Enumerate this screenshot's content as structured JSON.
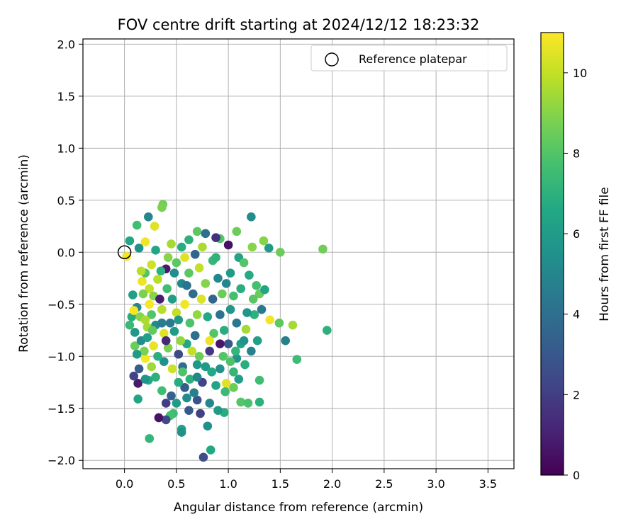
{
  "chart_data": {
    "type": "scatter",
    "title": "FOV centre drift starting at 2024/12/12 18:23:32",
    "xlabel": "Angular distance from reference (arcmin)",
    "ylabel": "Rotation from reference (arcmin)",
    "xlim": [
      -0.4,
      3.75
    ],
    "ylim": [
      -2.08,
      2.05
    ],
    "xticks": [
      "0.0",
      "0.5",
      "1.0",
      "1.5",
      "2.0",
      "2.5",
      "3.0",
      "3.5"
    ],
    "yticks": [
      "−2.0",
      "−1.5",
      "−1.0",
      "−0.5",
      "0.0",
      "0.5",
      "1.0",
      "1.5",
      "2.0"
    ],
    "grid": true,
    "legend": {
      "location": "upper-right",
      "entries": [
        "Reference platepar"
      ]
    },
    "reference_point": {
      "x": 0.0,
      "y": 0.0
    },
    "colorbar": {
      "label": "Hours from first FF file",
      "cmap": "viridis",
      "range": [
        0,
        11
      ],
      "ticks": [
        "0",
        "2",
        "4",
        "6",
        "8",
        "10"
      ]
    },
    "points": [
      {
        "x": 1.91,
        "y": 0.03,
        "c": 8.6
      },
      {
        "x": 1.95,
        "y": -0.75,
        "c": 7.0
      },
      {
        "x": 1.66,
        "y": -1.03,
        "c": 7.5
      },
      {
        "x": 1.62,
        "y": -0.7,
        "c": 9.5
      },
      {
        "x": 1.55,
        "y": -0.85,
        "c": 4.8
      },
      {
        "x": 1.5,
        "y": 0.0,
        "c": 8.5
      },
      {
        "x": 1.49,
        "y": -0.68,
        "c": 8.2
      },
      {
        "x": 1.4,
        "y": -0.65,
        "c": 10.8
      },
      {
        "x": 1.39,
        "y": 0.04,
        "c": 6.0
      },
      {
        "x": 1.34,
        "y": 0.11,
        "c": 9.0
      },
      {
        "x": 1.3,
        "y": -1.44,
        "c": 7.0
      },
      {
        "x": 1.3,
        "y": -1.23,
        "c": 7.6
      },
      {
        "x": 1.22,
        "y": 0.34,
        "c": 5.3
      },
      {
        "x": 1.23,
        "y": 0.05,
        "c": 9.0
      },
      {
        "x": 1.08,
        "y": 0.2,
        "c": 8.5
      },
      {
        "x": 1.0,
        "y": 0.07,
        "c": 0.5
      },
      {
        "x": 0.92,
        "y": 0.13,
        "c": 8.0
      },
      {
        "x": 0.7,
        "y": 0.2,
        "c": 8.2
      },
      {
        "x": 0.78,
        "y": 0.18,
        "c": 4.0
      },
      {
        "x": 0.88,
        "y": 0.14,
        "c": 1.5
      },
      {
        "x": 0.62,
        "y": 0.12,
        "c": 7.0
      },
      {
        "x": 0.37,
        "y": 0.46,
        "c": 8.6
      },
      {
        "x": 0.36,
        "y": 0.43,
        "c": 8.8
      },
      {
        "x": 0.23,
        "y": 0.34,
        "c": 5.0
      },
      {
        "x": 0.29,
        "y": 0.25,
        "c": 10.5
      },
      {
        "x": 0.12,
        "y": 0.26,
        "c": 7.6
      },
      {
        "x": 0.05,
        "y": 0.11,
        "c": 6.5
      },
      {
        "x": 0.14,
        "y": 0.04,
        "c": 5.5
      },
      {
        "x": 0.2,
        "y": 0.1,
        "c": 10.8
      },
      {
        "x": 0.02,
        "y": -0.04,
        "c": 10.8
      },
      {
        "x": 0.45,
        "y": 0.08,
        "c": 9.5
      },
      {
        "x": 0.55,
        "y": 0.05,
        "c": 6.8
      },
      {
        "x": 0.68,
        "y": -0.02,
        "c": 3.5
      },
      {
        "x": 0.72,
        "y": -0.15,
        "c": 10.0
      },
      {
        "x": 0.4,
        "y": -0.16,
        "c": 0.8
      },
      {
        "x": 0.5,
        "y": -0.1,
        "c": 8.2
      },
      {
        "x": 0.85,
        "y": -0.08,
        "c": 7.3
      },
      {
        "x": 1.1,
        "y": -0.05,
        "c": 6.3
      },
      {
        "x": 1.15,
        "y": -0.1,
        "c": 8.0
      },
      {
        "x": 1.2,
        "y": -0.22,
        "c": 6.7
      },
      {
        "x": 0.98,
        "y": -0.3,
        "c": 5.0
      },
      {
        "x": 1.27,
        "y": -0.32,
        "c": 7.7
      },
      {
        "x": 1.3,
        "y": -0.4,
        "c": 8.5
      },
      {
        "x": 1.35,
        "y": -0.36,
        "c": 6.4
      },
      {
        "x": 1.32,
        "y": -0.55,
        "c": 4.5
      },
      {
        "x": 1.25,
        "y": -0.6,
        "c": 7.0
      },
      {
        "x": 1.18,
        "y": -0.58,
        "c": 5.8
      },
      {
        "x": 1.17,
        "y": -0.74,
        "c": 9.5
      },
      {
        "x": 1.12,
        "y": -0.88,
        "c": 6.2
      },
      {
        "x": 1.22,
        "y": -0.95,
        "c": 4.8
      },
      {
        "x": 1.08,
        "y": -1.02,
        "c": 5.7
      },
      {
        "x": 1.16,
        "y": -1.08,
        "c": 6.8
      },
      {
        "x": 1.05,
        "y": -1.15,
        "c": 7.2
      },
      {
        "x": 1.1,
        "y": -1.22,
        "c": 6.1
      },
      {
        "x": 1.12,
        "y": -1.44,
        "c": 8.0
      },
      {
        "x": 1.19,
        "y": -1.45,
        "c": 7.8
      },
      {
        "x": 1.05,
        "y": -1.3,
        "c": 8.5
      },
      {
        "x": 0.98,
        "y": -1.26,
        "c": 10.5
      },
      {
        "x": 0.96,
        "y": -1.54,
        "c": 6.8
      },
      {
        "x": 0.9,
        "y": -1.52,
        "c": 6.0
      },
      {
        "x": 0.97,
        "y": -1.34,
        "c": 7.4
      },
      {
        "x": 0.82,
        "y": -1.45,
        "c": 5.0
      },
      {
        "x": 0.8,
        "y": -1.67,
        "c": 5.5
      },
      {
        "x": 0.83,
        "y": -1.9,
        "c": 6.6
      },
      {
        "x": 0.76,
        "y": -1.97,
        "c": 2.6
      },
      {
        "x": 0.73,
        "y": -1.55,
        "c": 2.1
      },
      {
        "x": 0.7,
        "y": -1.42,
        "c": 2.8
      },
      {
        "x": 0.62,
        "y": -1.52,
        "c": 3.0
      },
      {
        "x": 0.55,
        "y": -1.7,
        "c": 6.3
      },
      {
        "x": 0.55,
        "y": -1.73,
        "c": 5.5
      },
      {
        "x": 0.47,
        "y": -1.55,
        "c": 7.5
      },
      {
        "x": 0.44,
        "y": -1.57,
        "c": 7.7
      },
      {
        "x": 0.4,
        "y": -1.61,
        "c": 2.5
      },
      {
        "x": 0.33,
        "y": -1.59,
        "c": 0.6
      },
      {
        "x": 0.24,
        "y": -1.79,
        "c": 7.2
      },
      {
        "x": 0.4,
        "y": -1.45,
        "c": 2.0
      },
      {
        "x": 0.36,
        "y": -1.33,
        "c": 7.6
      },
      {
        "x": 0.3,
        "y": -1.2,
        "c": 7.0
      },
      {
        "x": 0.23,
        "y": -1.23,
        "c": 6.7
      },
      {
        "x": 0.13,
        "y": -1.26,
        "c": 0.8
      },
      {
        "x": 0.13,
        "y": -1.41,
        "c": 6.4
      },
      {
        "x": 0.09,
        "y": -1.19,
        "c": 2.2
      },
      {
        "x": 0.14,
        "y": -1.12,
        "c": 3.2
      },
      {
        "x": 0.2,
        "y": -1.02,
        "c": 10.9
      },
      {
        "x": 0.1,
        "y": -0.9,
        "c": 8.5
      },
      {
        "x": 0.16,
        "y": -0.85,
        "c": 5.3
      },
      {
        "x": 0.19,
        "y": -0.95,
        "c": 8.8
      },
      {
        "x": 0.1,
        "y": -0.77,
        "c": 5.8
      },
      {
        "x": 0.07,
        "y": -0.62,
        "c": 6.8
      },
      {
        "x": 0.12,
        "y": -0.53,
        "c": 5.0
      },
      {
        "x": 0.08,
        "y": -0.41,
        "c": 6.2
      },
      {
        "x": 0.09,
        "y": -0.56,
        "c": 10.9
      },
      {
        "x": 0.05,
        "y": -0.7,
        "c": 7.4
      },
      {
        "x": 0.17,
        "y": -0.28,
        "c": 10.7
      },
      {
        "x": 0.2,
        "y": -0.2,
        "c": 8.0
      },
      {
        "x": 0.24,
        "y": -0.35,
        "c": 10.0
      },
      {
        "x": 0.28,
        "y": -0.42,
        "c": 9.0
      },
      {
        "x": 0.32,
        "y": -0.26,
        "c": 9.8
      },
      {
        "x": 0.35,
        "y": -0.18,
        "c": 7.0
      },
      {
        "x": 0.26,
        "y": -0.6,
        "c": 8.0
      },
      {
        "x": 0.22,
        "y": -0.72,
        "c": 9.5
      },
      {
        "x": 0.3,
        "y": -0.7,
        "c": 5.2
      },
      {
        "x": 0.36,
        "y": -0.55,
        "c": 9.8
      },
      {
        "x": 0.41,
        "y": -0.35,
        "c": 7.6
      },
      {
        "x": 0.38,
        "y": -0.78,
        "c": 10.5
      },
      {
        "x": 0.44,
        "y": -0.68,
        "c": 4.5
      },
      {
        "x": 0.5,
        "y": -0.58,
        "c": 10.0
      },
      {
        "x": 0.48,
        "y": -0.76,
        "c": 6.0
      },
      {
        "x": 0.42,
        "y": -0.92,
        "c": 8.8
      },
      {
        "x": 0.38,
        "y": -1.05,
        "c": 5.5
      },
      {
        "x": 0.46,
        "y": -1.12,
        "c": 10.2
      },
      {
        "x": 0.52,
        "y": -0.98,
        "c": 2.5
      },
      {
        "x": 0.56,
        "y": -1.1,
        "c": 4.0
      },
      {
        "x": 0.6,
        "y": -0.88,
        "c": 6.5
      },
      {
        "x": 0.58,
        "y": -0.5,
        "c": 10.8
      },
      {
        "x": 0.55,
        "y": -0.3,
        "c": 5.0
      },
      {
        "x": 0.62,
        "y": -0.2,
        "c": 8.2
      },
      {
        "x": 0.66,
        "y": -0.4,
        "c": 3.8
      },
      {
        "x": 0.7,
        "y": -0.6,
        "c": 9.2
      },
      {
        "x": 0.68,
        "y": -0.8,
        "c": 4.0
      },
      {
        "x": 0.65,
        "y": -0.95,
        "c": 10.0
      },
      {
        "x": 0.7,
        "y": -1.08,
        "c": 5.8
      },
      {
        "x": 0.63,
        "y": -1.22,
        "c": 7.0
      },
      {
        "x": 0.58,
        "y": -1.3,
        "c": 3.2
      },
      {
        "x": 0.52,
        "y": -1.25,
        "c": 6.8
      },
      {
        "x": 0.67,
        "y": -1.35,
        "c": 4.8
      },
      {
        "x": 0.75,
        "y": -1.25,
        "c": 2.2
      },
      {
        "x": 0.78,
        "y": -1.1,
        "c": 6.0
      },
      {
        "x": 0.82,
        "y": -0.95,
        "c": 1.8
      },
      {
        "x": 0.86,
        "y": -0.78,
        "c": 8.0
      },
      {
        "x": 0.8,
        "y": -0.62,
        "c": 6.6
      },
      {
        "x": 0.85,
        "y": -0.45,
        "c": 3.5
      },
      {
        "x": 0.78,
        "y": -0.3,
        "c": 9.0
      },
      {
        "x": 0.9,
        "y": -0.25,
        "c": 5.0
      },
      {
        "x": 0.94,
        "y": -0.4,
        "c": 8.5
      },
      {
        "x": 0.92,
        "y": -0.6,
        "c": 4.2
      },
      {
        "x": 0.96,
        "y": -0.75,
        "c": 6.8
      },
      {
        "x": 1.0,
        "y": -0.88,
        "c": 3.0
      },
      {
        "x": 0.95,
        "y": -1.0,
        "c": 8.0
      },
      {
        "x": 0.92,
        "y": -1.12,
        "c": 5.5
      },
      {
        "x": 0.88,
        "y": -1.28,
        "c": 6.4
      },
      {
        "x": 1.02,
        "y": -0.55,
        "c": 5.8
      },
      {
        "x": 1.05,
        "y": -0.42,
        "c": 7.7
      },
      {
        "x": 1.08,
        "y": -0.68,
        "c": 4.4
      },
      {
        "x": 1.02,
        "y": -0.2,
        "c": 6.0
      },
      {
        "x": 0.75,
        "y": 0.05,
        "c": 9.6
      },
      {
        "x": 0.58,
        "y": -0.05,
        "c": 10.5
      },
      {
        "x": 0.48,
        "y": -0.2,
        "c": 5.3
      },
      {
        "x": 0.42,
        "y": -0.05,
        "c": 9.0
      },
      {
        "x": 0.3,
        "y": 0.02,
        "c": 6.5
      },
      {
        "x": 0.26,
        "y": -0.12,
        "c": 10.2
      },
      {
        "x": 0.18,
        "y": -0.4,
        "c": 8.8
      },
      {
        "x": 0.15,
        "y": -0.62,
        "c": 9.0
      },
      {
        "x": 0.22,
        "y": -0.82,
        "c": 6.2
      },
      {
        "x": 0.28,
        "y": -0.9,
        "c": 10.6
      },
      {
        "x": 0.32,
        "y": -1.0,
        "c": 6.9
      },
      {
        "x": 0.26,
        "y": -1.1,
        "c": 9.4
      },
      {
        "x": 0.2,
        "y": -1.22,
        "c": 5.6
      },
      {
        "x": 0.45,
        "y": -1.38,
        "c": 3.4
      },
      {
        "x": 0.5,
        "y": -1.45,
        "c": 6.0
      },
      {
        "x": 0.6,
        "y": -1.4,
        "c": 5.2
      },
      {
        "x": 0.74,
        "y": -0.45,
        "c": 10.4
      },
      {
        "x": 0.63,
        "y": -0.68,
        "c": 7.9
      },
      {
        "x": 0.54,
        "y": -0.85,
        "c": 9.2
      },
      {
        "x": 0.46,
        "y": -0.45,
        "c": 6.1
      },
      {
        "x": 0.36,
        "y": -0.68,
        "c": 4.6
      },
      {
        "x": 0.24,
        "y": -0.5,
        "c": 10.9
      },
      {
        "x": 0.16,
        "y": -0.18,
        "c": 9.8
      },
      {
        "x": 0.88,
        "y": -0.05,
        "c": 7.1
      },
      {
        "x": 1.12,
        "y": -0.35,
        "c": 6.9
      },
      {
        "x": 1.24,
        "y": -0.45,
        "c": 8.1
      },
      {
        "x": 1.15,
        "y": -0.85,
        "c": 5.6
      },
      {
        "x": 1.02,
        "y": -1.05,
        "c": 7.9
      },
      {
        "x": 0.84,
        "y": -1.15,
        "c": 6.6
      },
      {
        "x": 0.72,
        "y": -1.0,
        "c": 8.5
      },
      {
        "x": 0.52,
        "y": -0.65,
        "c": 5.9
      },
      {
        "x": 0.6,
        "y": -0.32,
        "c": 4.2
      },
      {
        "x": 0.82,
        "y": -0.85,
        "c": 10.7
      },
      {
        "x": 0.4,
        "y": -0.85,
        "c": 1.2
      },
      {
        "x": 0.34,
        "y": -0.45,
        "c": 0.9
      },
      {
        "x": 0.27,
        "y": -0.75,
        "c": 8.3
      },
      {
        "x": 0.12,
        "y": -0.98,
        "c": 6.0
      },
      {
        "x": 0.2,
        "y": -0.65,
        "c": 9.6
      },
      {
        "x": 0.92,
        "y": -0.88,
        "c": 0.7
      },
      {
        "x": 1.07,
        "y": -0.95,
        "c": 7.2
      },
      {
        "x": 1.28,
        "y": -0.85,
        "c": 6.2
      },
      {
        "x": 0.7,
        "y": -1.2,
        "c": 5.0
      },
      {
        "x": 0.56,
        "y": -1.15,
        "c": 7.9
      }
    ]
  }
}
